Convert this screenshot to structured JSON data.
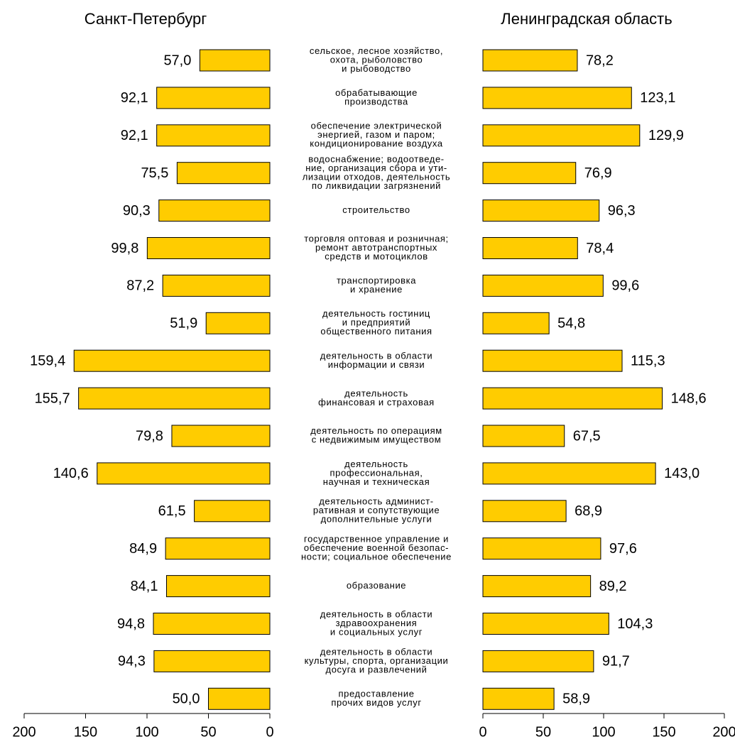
{
  "chart_data": [
    {
      "type": "bar",
      "orientation": "horizontal",
      "title": "Санкт-Петербург",
      "color": "#ffcc00",
      "categories": [
        [
          "сельское, лесное хозяйство,",
          "охота, рыболовство",
          "и рыбоводство"
        ],
        [
          "обрабатывающие",
          "производства"
        ],
        [
          "обеспечение электрической",
          "энергией, газом и паром;",
          "кондиционирование воздуха"
        ],
        [
          "водоснабжение; водоотведе-",
          "ние, организация сбора и ути-",
          "лизации отходов, деятельность",
          "по ликвидации загрязнений"
        ],
        [
          "строительство"
        ],
        [
          "торговля оптовая и розничная;",
          "ремонт автотранспортных",
          "средств и мотоциклов"
        ],
        [
          "транспортировка",
          "и хранение"
        ],
        [
          "деятельность гостиниц",
          "и предприятий",
          "общественного питания"
        ],
        [
          "деятельность в области",
          "информации и связи"
        ],
        [
          "деятельность",
          "финансовая и страховая"
        ],
        [
          "деятельность по операциям",
          "с недвижимым имуществом"
        ],
        [
          "деятельность",
          "профессиональная,",
          "научная и техническая"
        ],
        [
          "деятельность админист-",
          "ративная и сопутствующие",
          "дополнительные услуги"
        ],
        [
          "государственное управление и",
          "обеспечение военной безопас-",
          "ности; социальное обеспечение"
        ],
        [
          "образование"
        ],
        [
          "деятельность в области",
          "здравоохранения",
          "и социальных услуг"
        ],
        [
          "деятельность в области",
          "культуры, спорта, организации",
          "досуга и развлечений"
        ],
        [
          "предоставление",
          "прочих видов услуг"
        ]
      ],
      "values": [
        57.0,
        92.1,
        92.1,
        75.5,
        90.3,
        99.8,
        87.2,
        51.9,
        159.4,
        155.7,
        79.8,
        140.6,
        61.5,
        84.9,
        84.1,
        94.8,
        94.3,
        50.0
      ],
      "value_labels": [
        "57,0",
        "92,1",
        "92,1",
        "75,5",
        "90,3",
        "99,8",
        "87,2",
        "51,9",
        "159,4",
        "155,7",
        "79,8",
        "140,6",
        "61,5",
        "84,9",
        "84,1",
        "94,8",
        "94,3",
        "50,0"
      ],
      "xlim": [
        200,
        0
      ],
      "xticks": [
        200,
        150,
        100,
        50,
        0
      ]
    },
    {
      "type": "bar",
      "orientation": "horizontal",
      "title": "Ленинградская область",
      "color": "#ffcc00",
      "values": [
        78.2,
        123.1,
        129.9,
        76.9,
        96.3,
        78.4,
        99.6,
        54.8,
        115.3,
        148.6,
        67.5,
        143.0,
        68.9,
        97.6,
        89.2,
        104.3,
        91.7,
        58.9
      ],
      "value_labels": [
        "78,2",
        "123,1",
        "129,9",
        "76,9",
        "96,3",
        "78,4",
        "99,6",
        "54,8",
        "115,3",
        "148,6",
        "67,5",
        "143,0",
        "68,9",
        "97,6",
        "89,2",
        "104,3",
        "91,7",
        "58,9"
      ],
      "xlim": [
        0,
        200
      ],
      "xticks": [
        0,
        50,
        100,
        150,
        200
      ]
    }
  ]
}
